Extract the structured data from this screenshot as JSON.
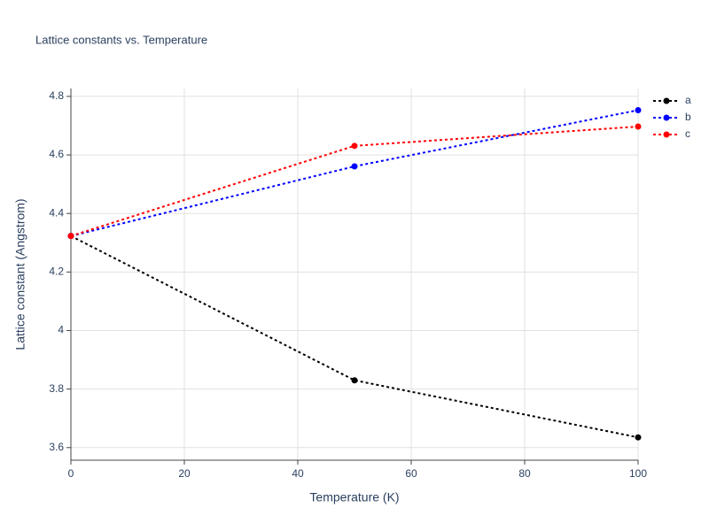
{
  "chart_data": {
    "type": "line",
    "title": "Lattice constants vs. Temperature",
    "x_label": "Temperature (K)",
    "y_label": "Lattice constant (Angstrom)",
    "x": [
      0,
      50,
      100
    ],
    "series": [
      {
        "name": "a",
        "color": "#000000",
        "values": [
          4.323,
          3.83,
          3.635
        ]
      },
      {
        "name": "b",
        "color": "#0000ff",
        "values": [
          4.323,
          4.561,
          4.753
        ]
      },
      {
        "name": "c",
        "color": "#ff0000",
        "values": [
          4.323,
          4.631,
          4.697
        ]
      }
    ],
    "xlim": [
      0,
      100
    ],
    "xticks": [
      0,
      20,
      40,
      60,
      80,
      100
    ],
    "ylim": [
      3.557,
      4.827
    ],
    "yticks": [
      3.6,
      3.8,
      4,
      4.2,
      4.4,
      4.6,
      4.8
    ],
    "grid": true,
    "legend": "right",
    "line_dash": "dot"
  }
}
